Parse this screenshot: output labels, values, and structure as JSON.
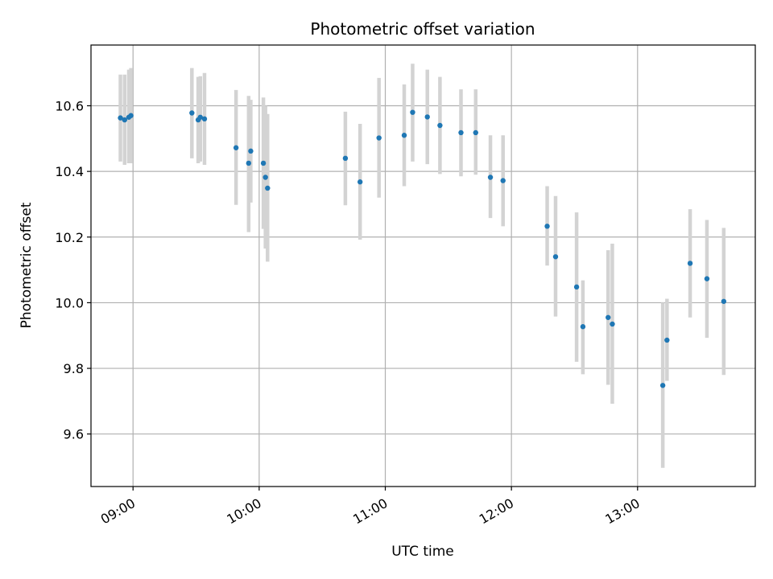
{
  "chart_data": {
    "type": "scatter",
    "title": "Photometric offset variation",
    "xlabel": "UTC time",
    "ylabel": "Photometric offset",
    "x_axis_kind": "time",
    "xlim": [
      "08:40",
      "13:56"
    ],
    "ylim": [
      9.44,
      10.785
    ],
    "x_ticks": [
      "09:00",
      "10:00",
      "11:00",
      "12:00",
      "13:00"
    ],
    "y_ticks": [
      "9.6",
      "9.8",
      "10.0",
      "10.2",
      "10.4",
      "10.6"
    ],
    "grid": true,
    "colors": {
      "marker": "#1f77b4",
      "errorbar": "#d3d3d3",
      "grid": "#b0b0b0"
    },
    "points": [
      {
        "x": "08:54",
        "y": 10.563,
        "ylow": 10.43,
        "yhigh": 10.695
      },
      {
        "x": "08:56",
        "y": 10.557,
        "ylow": 10.42,
        "yhigh": 10.695
      },
      {
        "x": "08:58",
        "y": 10.565,
        "ylow": 10.425,
        "yhigh": 10.71
      },
      {
        "x": "08:59",
        "y": 10.57,
        "ylow": 10.425,
        "yhigh": 10.715
      },
      {
        "x": "09:28",
        "y": 10.578,
        "ylow": 10.44,
        "yhigh": 10.715
      },
      {
        "x": "09:31",
        "y": 10.557,
        "ylow": 10.425,
        "yhigh": 10.688
      },
      {
        "x": "09:32",
        "y": 10.565,
        "ylow": 10.43,
        "yhigh": 10.69
      },
      {
        "x": "09:34",
        "y": 10.56,
        "ylow": 10.42,
        "yhigh": 10.7
      },
      {
        "x": "09:49",
        "y": 10.472,
        "ylow": 10.298,
        "yhigh": 10.648
      },
      {
        "x": "09:55",
        "y": 10.425,
        "ylow": 10.215,
        "yhigh": 10.63
      },
      {
        "x": "09:56",
        "y": 10.462,
        "ylow": 10.305,
        "yhigh": 10.618
      },
      {
        "x": "10:02",
        "y": 10.425,
        "ylow": 10.225,
        "yhigh": 10.625
      },
      {
        "x": "10:03",
        "y": 10.382,
        "ylow": 10.165,
        "yhigh": 10.6
      },
      {
        "x": "10:04",
        "y": 10.349,
        "ylow": 10.125,
        "yhigh": 10.575
      },
      {
        "x": "10:41",
        "y": 10.44,
        "ylow": 10.297,
        "yhigh": 10.582
      },
      {
        "x": "10:48",
        "y": 10.368,
        "ylow": 10.192,
        "yhigh": 10.545
      },
      {
        "x": "10:57",
        "y": 10.502,
        "ylow": 10.32,
        "yhigh": 10.685
      },
      {
        "x": "11:09",
        "y": 10.51,
        "ylow": 10.355,
        "yhigh": 10.665
      },
      {
        "x": "11:13",
        "y": 10.58,
        "ylow": 10.43,
        "yhigh": 10.728
      },
      {
        "x": "11:20",
        "y": 10.566,
        "ylow": 10.422,
        "yhigh": 10.71
      },
      {
        "x": "11:26",
        "y": 10.54,
        "ylow": 10.392,
        "yhigh": 10.688
      },
      {
        "x": "11:36",
        "y": 10.518,
        "ylow": 10.385,
        "yhigh": 10.65
      },
      {
        "x": "11:43",
        "y": 10.518,
        "ylow": 10.39,
        "yhigh": 10.65
      },
      {
        "x": "11:50",
        "y": 10.382,
        "ylow": 10.258,
        "yhigh": 10.51
      },
      {
        "x": "11:56",
        "y": 10.372,
        "ylow": 10.233,
        "yhigh": 10.51
      },
      {
        "x": "12:17",
        "y": 10.233,
        "ylow": 10.113,
        "yhigh": 10.355
      },
      {
        "x": "12:21",
        "y": 10.14,
        "ylow": 9.958,
        "yhigh": 10.325
      },
      {
        "x": "12:31",
        "y": 10.048,
        "ylow": 9.82,
        "yhigh": 10.275
      },
      {
        "x": "12:34",
        "y": 9.927,
        "ylow": 9.782,
        "yhigh": 10.068
      },
      {
        "x": "12:46",
        "y": 9.955,
        "ylow": 9.75,
        "yhigh": 10.16
      },
      {
        "x": "12:48",
        "y": 9.935,
        "ylow": 9.692,
        "yhigh": 10.18
      },
      {
        "x": "13:12",
        "y": 9.748,
        "ylow": 9.497,
        "yhigh": 10.0
      },
      {
        "x": "13:14",
        "y": 9.886,
        "ylow": 9.762,
        "yhigh": 10.012
      },
      {
        "x": "13:25",
        "y": 10.12,
        "ylow": 9.955,
        "yhigh": 10.285
      },
      {
        "x": "13:33",
        "y": 10.073,
        "ylow": 9.893,
        "yhigh": 10.252
      },
      {
        "x": "13:41",
        "y": 10.004,
        "ylow": 9.78,
        "yhigh": 10.228
      }
    ]
  }
}
